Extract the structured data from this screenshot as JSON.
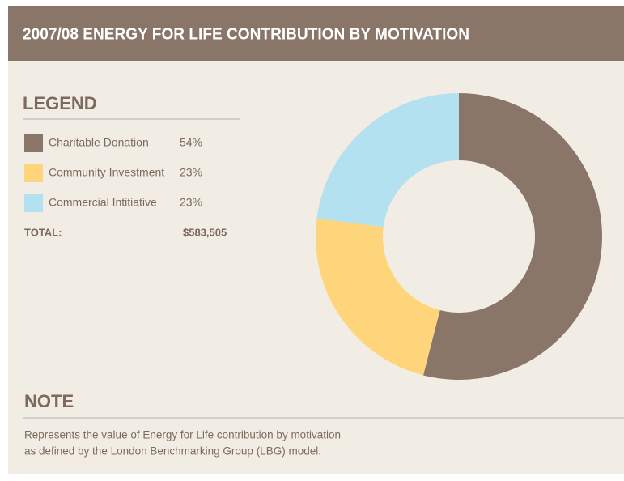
{
  "chart_data": {
    "type": "pie",
    "title": "2007/08 ENERGY FOR LIFE CONTRIBUTION BY MOTIVATION",
    "legend_title": "LEGEND",
    "categories": [
      "Charitable Donation",
      "Community Investment",
      "Commercial Intitiative"
    ],
    "values": [
      54,
      23,
      23
    ],
    "value_labels": [
      "54%",
      "23%",
      "23%"
    ],
    "colors": [
      "#8a7569",
      "#fed57a",
      "#b3e1ef"
    ],
    "donut": true,
    "total_label": "TOTAL:",
    "total": "$583,505",
    "note_title": "NOTE",
    "note_lines": [
      "Represents the value of Energy for Life contribution by motivation",
      "as defined by the London Benchmarking Group (LBG) model."
    ]
  }
}
